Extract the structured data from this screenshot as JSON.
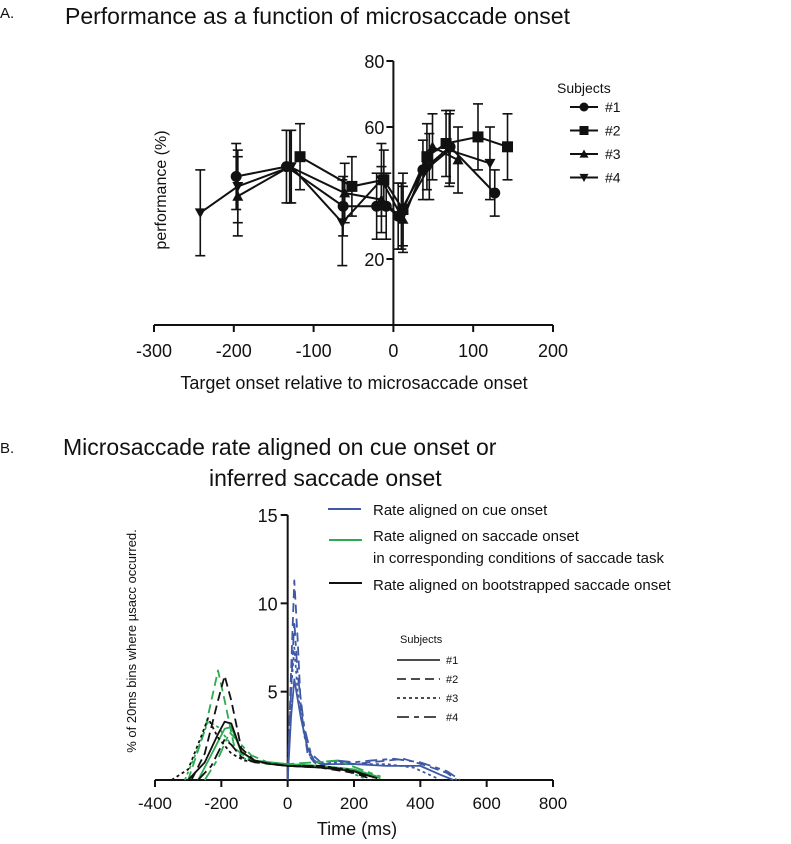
{
  "chart_data": [
    {
      "panel_label": "A.",
      "type": "scatter",
      "title": "Performance as a function of microsaccade onset",
      "xlabel": "Target onset relative to microsaccade onset",
      "ylabel": "performance (%)",
      "xlim": [
        -300,
        200
      ],
      "ylim": [
        0,
        80
      ],
      "xticks": [
        "-300",
        "-200",
        "-100",
        "0",
        "100",
        "200"
      ],
      "yticks": [
        "20",
        "60",
        "80"
      ],
      "ytick_values": [
        20,
        60,
        80
      ],
      "xtick_values": [
        -300,
        -200,
        -100,
        0,
        100,
        200
      ],
      "grid": false,
      "legend_title": "Subjects",
      "legend_placement": "right",
      "series": [
        {
          "name": "#1",
          "marker": "circle",
          "x": [
            -197,
            -134,
            -63,
            -21,
            -9,
            6,
            37,
            71,
            127
          ],
          "y": [
            45,
            48,
            36,
            36,
            36,
            33,
            47,
            54,
            40
          ],
          "err": [
            10,
            11,
            9,
            10,
            10,
            10,
            9,
            11,
            7
          ]
        },
        {
          "name": "#2",
          "marker": "square",
          "x": [
            -117,
            -52,
            -12,
            12,
            42,
            66,
            106,
            143
          ],
          "y": [
            51,
            42,
            44,
            35,
            51,
            55,
            57,
            54
          ],
          "err": [
            10,
            9,
            9,
            11,
            10,
            10,
            10,
            10
          ]
        },
        {
          "name": "#3",
          "marker": "triangle-up",
          "x": [
            -195,
            -130,
            -61,
            -15,
            12,
            49,
            81
          ],
          "y": [
            39,
            48,
            40,
            38,
            32,
            54,
            50
          ],
          "err": [
            12,
            11,
            9,
            10,
            10,
            10,
            10
          ]
        },
        {
          "name": "#4",
          "marker": "triangle-down",
          "x": [
            -242,
            -195,
            -128,
            -64,
            -15,
            10,
            45,
            70,
            121
          ],
          "y": [
            34,
            42,
            48,
            31,
            44,
            33,
            48,
            53,
            49
          ],
          "err": [
            13,
            11,
            11,
            13,
            11,
            10,
            10,
            11,
            11
          ]
        }
      ]
    },
    {
      "panel_label": "B.",
      "type": "line",
      "title": "Microsaccade rate aligned on cue onset or",
      "title_line2": "inferred saccade onset",
      "xlabel": "Time (ms)",
      "ylabel": "% of 20ms bins where µsacc occurred.",
      "xlim": [
        -400,
        800
      ],
      "ylim": [
        0,
        15
      ],
      "xticks": [
        "-400",
        "-200",
        "0",
        "200",
        "400",
        "600",
        "800"
      ],
      "xtick_values": [
        -400,
        -200,
        0,
        200,
        400,
        600,
        800
      ],
      "yticks": [
        "5",
        "10",
        "15"
      ],
      "ytick_values": [
        5,
        10,
        15
      ],
      "grid": false,
      "color_legend": [
        {
          "label": "Rate aligned on cue onset",
          "color": "#4059a6"
        },
        {
          "label": "Rate aligned on saccade onset",
          "label2": "in corresponding conditions of saccade task",
          "color": "#2eaa50"
        },
        {
          "label": "Rate aligned on bootstrapped saccade onset",
          "color": "#111111"
        }
      ],
      "subject_legend_title": "Subjects",
      "subject_legend": [
        "#1",
        "#2",
        "#3",
        "#4"
      ],
      "series": [
        {
          "name": "cue #1",
          "group": 0,
          "subject": 0,
          "x": [
            0,
            10,
            20,
            40,
            60,
            80,
            100,
            150,
            200,
            300,
            400,
            460,
            500
          ],
          "y": [
            0,
            3.5,
            5.7,
            3.5,
            1.8,
            1.1,
            0.9,
            0.9,
            0.9,
            0.8,
            0.8,
            0.3,
            0
          ]
        },
        {
          "name": "cue #2",
          "group": 0,
          "subject": 1,
          "x": [
            0,
            10,
            20,
            30,
            40,
            60,
            80,
            100,
            150,
            200,
            300,
            350,
            420,
            480,
            510
          ],
          "y": [
            0,
            6,
            11.3,
            8,
            4,
            1.5,
            1,
            0.8,
            1.1,
            0.9,
            1.1,
            1.2,
            0.8,
            0.4,
            0
          ]
        },
        {
          "name": "cue #3",
          "group": 0,
          "subject": 2,
          "x": [
            0,
            10,
            20,
            30,
            50,
            70,
            100,
            150,
            200,
            300,
            380,
            450
          ],
          "y": [
            0,
            5,
            7.5,
            5,
            2.5,
            1.2,
            0.9,
            1,
            0.9,
            0.9,
            0.7,
            0.1
          ]
        },
        {
          "name": "cue #4",
          "group": 0,
          "subject": 3,
          "x": [
            0,
            10,
            20,
            30,
            50,
            70,
            100,
            150,
            200,
            250,
            320,
            400,
            480,
            520
          ],
          "y": [
            0,
            5,
            9,
            6,
            3,
            1.5,
            1,
            1.1,
            1,
            1.1,
            1.2,
            1,
            0.5,
            0
          ]
        },
        {
          "name": "sacc #1",
          "group": 1,
          "subject": 0,
          "x": [
            -270,
            -220,
            -190,
            -170,
            -140,
            -100,
            -50,
            0,
            100,
            200,
            270
          ],
          "y": [
            0,
            1.8,
            2.9,
            3,
            1.6,
            1.1,
            1,
            0.9,
            0.8,
            0.6,
            0.2
          ]
        },
        {
          "name": "sacc #2",
          "group": 1,
          "subject": 1,
          "x": [
            -300,
            -250,
            -210,
            -190,
            -160,
            -120,
            -60,
            0,
            100,
            200,
            280
          ],
          "y": [
            0,
            2.8,
            6.2,
            4.5,
            1.8,
            1.2,
            0.9,
            0.8,
            0.8,
            0.5,
            0.1
          ]
        },
        {
          "name": "sacc #3",
          "group": 1,
          "subject": 2,
          "x": [
            -310,
            -270,
            -240,
            -210,
            -170,
            -130,
            -80,
            0,
            100,
            180,
            230
          ],
          "y": [
            0,
            1.8,
            3.3,
            3,
            2,
            1.2,
            1,
            0.9,
            0.8,
            0.5,
            0.1
          ]
        },
        {
          "name": "sacc #4",
          "group": 1,
          "subject": 3,
          "x": [
            -250,
            -210,
            -175,
            -150,
            -110,
            -60,
            0,
            80,
            150,
            220,
            280
          ],
          "y": [
            0,
            1.2,
            2.7,
            2.2,
            1.4,
            1.0,
            0.9,
            1.0,
            1.1,
            0.6,
            0.2
          ]
        },
        {
          "name": "boot #1",
          "group": 2,
          "subject": 0,
          "x": [
            -300,
            -250,
            -210,
            -190,
            -170,
            -140,
            -100,
            -50,
            0,
            100,
            200,
            270
          ],
          "y": [
            0,
            1,
            2.6,
            3.3,
            3.2,
            1.6,
            1.1,
            0.9,
            0.8,
            0.7,
            0.5,
            0.1
          ]
        },
        {
          "name": "boot #2",
          "group": 2,
          "subject": 1,
          "x": [
            -290,
            -250,
            -210,
            -190,
            -170,
            -140,
            -100,
            -50,
            0,
            100,
            200,
            260
          ],
          "y": [
            0,
            1.5,
            4.5,
            5.9,
            4.5,
            1.8,
            1.1,
            0.9,
            0.8,
            0.7,
            0.4,
            0
          ]
        },
        {
          "name": "boot #3",
          "group": 2,
          "subject": 2,
          "x": [
            -350,
            -300,
            -260,
            -240,
            -210,
            -170,
            -130,
            -80,
            0,
            100,
            180,
            250
          ],
          "y": [
            0,
            0.6,
            2.5,
            3.5,
            2.4,
            1.5,
            1.1,
            1,
            0.8,
            0.8,
            0.6,
            0.2
          ]
        },
        {
          "name": "boot #4",
          "group": 2,
          "subject": 3,
          "x": [
            -270,
            -230,
            -190,
            -170,
            -140,
            -100,
            -40,
            0,
            100,
            200,
            250
          ],
          "y": [
            0,
            0.8,
            2.3,
            2,
            1.3,
            1,
            0.9,
            0.8,
            0.8,
            0.5,
            0.1
          ]
        }
      ]
    }
  ]
}
